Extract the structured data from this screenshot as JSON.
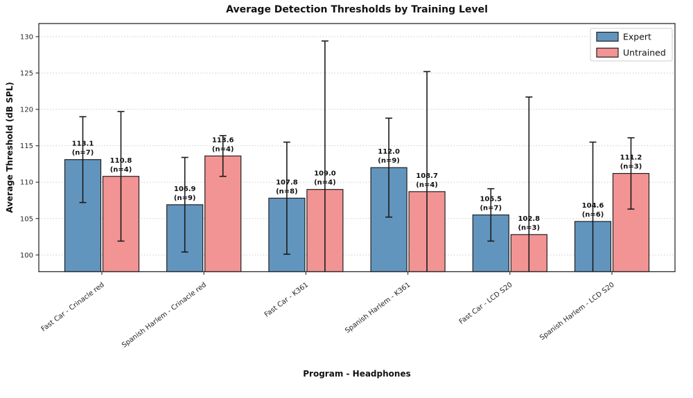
{
  "chart_data": {
    "type": "bar",
    "title": "Average Detection Thresholds by Training Level",
    "xlabel": "Program - Headphones",
    "ylabel": "Average Threshold (dB SPL)",
    "categories": [
      "Fast Car - Crinacle red",
      "Spanish Harlem - Crinacle red",
      "Fast Car - K361",
      "Spanish Harlem - K361",
      "Fast Car - LCD S20",
      "Spanish Harlem - LCD S20"
    ],
    "series": [
      {
        "name": "Expert",
        "color": "#6295BE",
        "values": [
          113.1,
          106.9,
          107.8,
          112.0,
          105.5,
          104.6
        ],
        "n": [
          7,
          9,
          8,
          9,
          7,
          6
        ],
        "err": [
          5.9,
          6.5,
          7.7,
          6.8,
          3.6,
          10.9
        ]
      },
      {
        "name": "Untrained",
        "color": "#F29494",
        "values": [
          110.8,
          113.6,
          109.0,
          108.7,
          102.8,
          111.2
        ],
        "n": [
          4,
          4,
          4,
          4,
          3,
          3
        ],
        "err": [
          8.9,
          2.8,
          20.4,
          16.5,
          18.9,
          4.9
        ]
      }
    ],
    "bar_label_format": "value over (n=count)",
    "yticks": [
      100,
      105,
      110,
      115,
      120,
      125,
      130
    ],
    "ylim": [
      97.7,
      131.8
    ],
    "grid": {
      "axis": "y",
      "style": "dotted",
      "color": "#c9c9c9"
    },
    "legend": {
      "position": "upper right",
      "entries": [
        "Expert",
        "Untrained"
      ]
    },
    "colors": {
      "expert": "#6295BE",
      "untrained": "#F29494",
      "bar_edge": "#1f1f1f",
      "error_bar": "#1a1a1a",
      "spine": "#2b2b2b",
      "background": "#ffffff"
    }
  }
}
